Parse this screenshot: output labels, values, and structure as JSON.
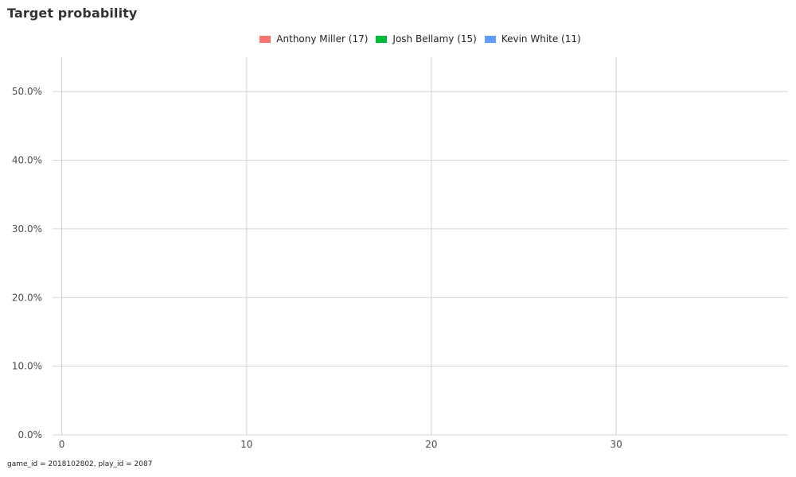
{
  "chart_data": {
    "type": "line",
    "title": "Target probability",
    "xlabel": "",
    "ylabel": "",
    "xlim": [
      -0.5,
      39.3
    ],
    "ylim": [
      0,
      0.55
    ],
    "x_ticks": [
      0,
      10,
      20,
      30
    ],
    "x_tick_labels": [
      "0",
      "10",
      "20",
      "30"
    ],
    "y_ticks": [
      0,
      0.1,
      0.2,
      0.3,
      0.4,
      0.5
    ],
    "y_tick_labels": [
      "0.0%",
      "10.0%",
      "20.0%",
      "30.0%",
      "40.0%",
      "50.0%"
    ],
    "grid": true,
    "legend_position": "top",
    "series": [
      {
        "name": "Anthony Miller (17)",
        "color": "#F8766D",
        "x": [],
        "y": []
      },
      {
        "name": "Josh Bellamy (15)",
        "color": "#00BA38",
        "x": [],
        "y": []
      },
      {
        "name": "Kevin White (11)",
        "color": "#619CFF",
        "x": [],
        "y": []
      }
    ],
    "caption": "game_id = 2018102802, play_id = 2087"
  }
}
